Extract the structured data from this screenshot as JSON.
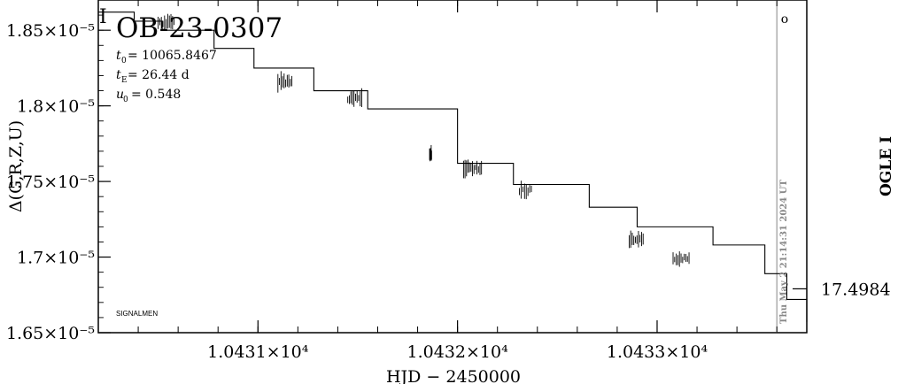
{
  "chart_data": {
    "type": "line",
    "title": "OB-23-0307",
    "params": [
      {
        "sym": "t",
        "sub": "0",
        "text": " = 10065.8467"
      },
      {
        "sym": "t",
        "sub": "E",
        "text": " = 26.44  d"
      },
      {
        "sym": "u",
        "sub": "0",
        "text": " = 0.548"
      }
    ],
    "xlabel": "HJD − 2450000",
    "ylabel": "Δ(G,R,Z,U)",
    "right_label": "OGLE I",
    "right_tick_label": "17.4984",
    "corner_note": "SIGNALMEN",
    "corner_mark": "o",
    "timestamp": "Thu May  2 21:14:31 2024 UT",
    "xlim": [
      10430.2,
      10433.75
    ],
    "ylim": [
      1.65e-05,
      1.87e-05
    ],
    "x_ticks": [
      {
        "value": 10431,
        "label": "1.0431×10⁴"
      },
      {
        "value": 10432,
        "label": "1.0432×10⁴"
      },
      {
        "value": 10433,
        "label": "1.0433×10⁴"
      }
    ],
    "y_ticks": [
      {
        "value": 1.85e-05,
        "label": "1.85×10⁻⁵"
      },
      {
        "value": 1.8e-05,
        "label": "1.8×10⁻⁵"
      },
      {
        "value": 1.75e-05,
        "label": "1.75×10⁻⁵"
      },
      {
        "value": 1.7e-05,
        "label": "1.7×10⁻⁵"
      },
      {
        "value": 1.65e-05,
        "label": "1.65×10⁻⁵"
      }
    ],
    "right_tick_y": 1.679e-05,
    "timestamp_x": 10433.6,
    "series": [
      {
        "x": [
          10430.2,
          10430.38,
          10430.52,
          10430.78,
          10430.98,
          10431.28,
          10431.55,
          10432.0,
          10432.28,
          10432.66,
          10432.9,
          10433.28,
          10433.54,
          10433.65,
          10433.75
        ],
        "y": [
          1.862e-05,
          1.856e-05,
          1.85e-05,
          1.838e-05,
          1.825e-05,
          1.81e-05,
          1.798e-05,
          1.762e-05,
          1.748e-05,
          1.733e-05,
          1.72e-05,
          1.708e-05,
          1.689e-05,
          1.672e-05,
          1.657e-05
        ]
      }
    ],
    "noise_bands": [
      {
        "x0": 10430.5,
        "x1": 10430.58,
        "y": 1.855e-05
      },
      {
        "x0": 10431.1,
        "x1": 10431.17,
        "y": 1.816e-05
      },
      {
        "x0": 10431.45,
        "x1": 10431.52,
        "y": 1.805e-05
      },
      {
        "x0": 10431.86,
        "x1": 10431.87,
        "y": 1.768e-05
      },
      {
        "x0": 10432.03,
        "x1": 10432.12,
        "y": 1.759e-05
      },
      {
        "x0": 10432.31,
        "x1": 10432.37,
        "y": 1.744e-05
      },
      {
        "x0": 10432.86,
        "x1": 10432.93,
        "y": 1.711e-05
      },
      {
        "x0": 10433.08,
        "x1": 10433.16,
        "y": 1.699e-05
      }
    ]
  }
}
